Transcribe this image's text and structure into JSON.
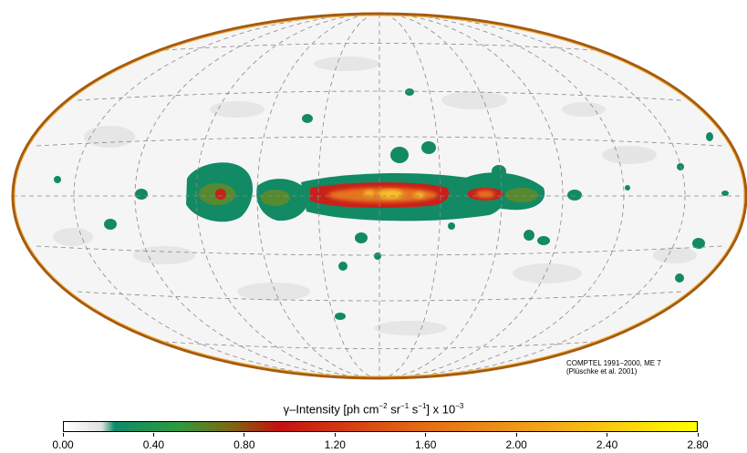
{
  "map": {
    "projection": "Aitoff",
    "background": "#f4f4f4",
    "outline_color": "#a55a10",
    "grid_color": "#7a7a7a"
  },
  "credit": {
    "line1": "COMPTEL 1991–2000, ME 7",
    "line2": "(Plüschke et al. 2001)"
  },
  "colorbar": {
    "title_prefix": "γ–Intensity [ph cm",
    "exp1": "−2",
    "unit_sr": " sr",
    "exp2": "−1",
    "unit_s": " s",
    "exp3": "−1",
    "title_bracket": "]   x 10",
    "exp4": "−3",
    "min": 0.0,
    "max": 2.8,
    "ticks": [
      "0.00",
      "0.40",
      "0.80",
      "1.20",
      "1.60",
      "2.00",
      "2.40",
      "2.80"
    ],
    "colors": [
      "#ffffff",
      "#e0e0e0",
      "#0f8a6a",
      "#2e9a3e",
      "#7a6a14",
      "#c41212",
      "#e26a14",
      "#f4ac18",
      "#ffff00"
    ]
  }
}
